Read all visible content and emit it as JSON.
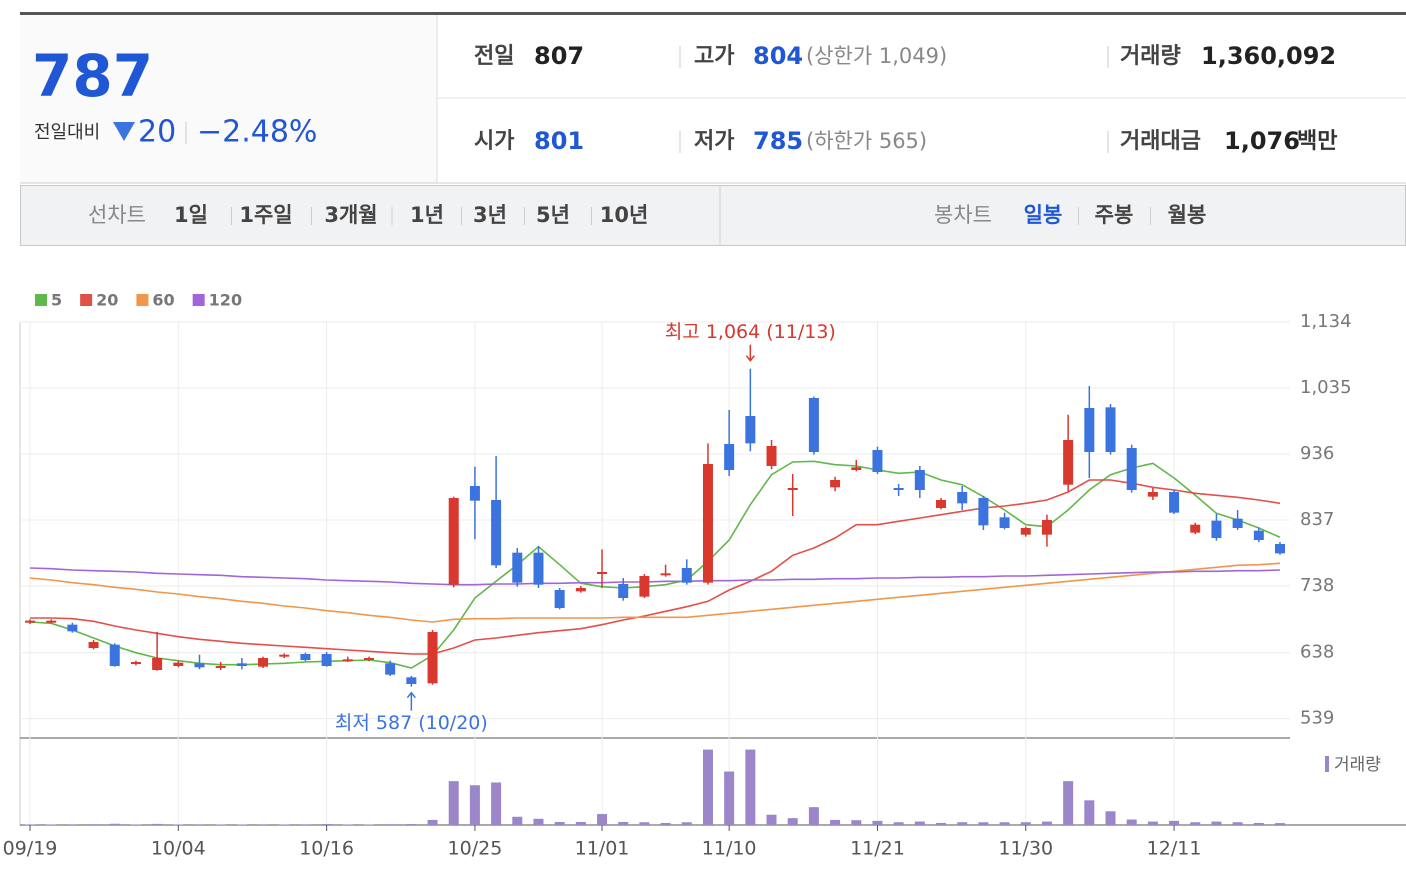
{
  "header": {
    "price": "787",
    "change_label": "전일대비",
    "change": "20",
    "change_pct": "−2.48%",
    "stats": [
      {
        "label": "전일",
        "value": "807"
      },
      {
        "label": "고가",
        "value": "804",
        "extra": "(상한가 1,049)"
      },
      {
        "label": "거래량",
        "value": "1,360,092"
      },
      {
        "label": "시가",
        "value": "801"
      },
      {
        "label": "저가",
        "value": "785",
        "extra": "(하한가 565)"
      },
      {
        "label": "거래대금",
        "value": "1,076",
        "unit": "백만"
      }
    ]
  },
  "tabs": {
    "line_chart": {
      "label": "선차트",
      "options": [
        "1일",
        "1주일",
        "3개월",
        "1년",
        "3년",
        "5년",
        "10년"
      ]
    },
    "candle_chart": {
      "label": "봉차트",
      "options": [
        "일봉",
        "주봉",
        "월봉"
      ],
      "selected": "일봉"
    }
  },
  "chart_data": {
    "type": "candlestick",
    "categories": [
      "09/19",
      null,
      null,
      null,
      null,
      null,
      null,
      "10/04",
      null,
      null,
      null,
      null,
      null,
      null,
      "10/16",
      null,
      null,
      null,
      null,
      null,
      null,
      "10/25",
      null,
      null,
      null,
      null,
      null,
      "11/01",
      null,
      null,
      null,
      null,
      null,
      "11/10",
      null,
      null,
      null,
      null,
      null,
      null,
      "11/21",
      null,
      null,
      null,
      null,
      null,
      null,
      "11/30",
      null,
      null,
      null,
      null,
      null,
      null,
      "12/11",
      null,
      null,
      null,
      null,
      null
    ],
    "open": [
      683,
      683,
      680,
      645,
      650,
      621,
      612,
      618,
      622,
      615,
      622,
      617,
      632,
      636,
      636,
      625,
      627,
      622,
      601,
      592,
      740,
      888,
      867,
      788,
      788,
      732,
      730,
      756,
      741,
      722,
      754,
      765,
      743,
      951,
      993,
      918,
      882,
      1020,
      886,
      912,
      942,
      885,
      912,
      855,
      879,
      870,
      841,
      815,
      815,
      890,
      1005,
      1006,
      945,
      872,
      879,
      818,
      836,
      839,
      821,
      801
    ],
    "high": [
      688,
      688,
      683,
      657,
      652,
      626,
      669,
      626,
      635,
      624,
      630,
      632,
      637,
      638,
      639,
      632,
      632,
      626,
      603,
      672,
      872,
      917,
      933,
      795,
      798,
      735,
      738,
      793,
      750,
      756,
      770,
      778,
      952,
      1002,
      1064,
      957,
      906,
      1022,
      902,
      927,
      947,
      891,
      918,
      870,
      888,
      873,
      848,
      827,
      845,
      995,
      1038,
      1011,
      950,
      885,
      882,
      833,
      846,
      852,
      826,
      804
    ],
    "low": [
      681,
      682,
      668,
      643,
      617,
      619,
      611,
      616,
      613,
      612,
      613,
      615,
      630,
      625,
      617,
      624,
      625,
      603,
      587,
      590,
      736,
      808,
      765,
      737,
      735,
      703,
      728,
      735,
      716,
      720,
      752,
      740,
      740,
      903,
      940,
      913,
      843,
      935,
      880,
      910,
      906,
      873,
      870,
      853,
      852,
      822,
      823,
      812,
      797,
      880,
      900,
      935,
      878,
      867,
      846,
      816,
      806,
      822,
      804,
      785
    ],
    "close": [
      686,
      686,
      670,
      654,
      618,
      624,
      630,
      623,
      616,
      618,
      618,
      630,
      635,
      627,
      618,
      628,
      630,
      605,
      591,
      669,
      870,
      866,
      769,
      743,
      740,
      705,
      735,
      759,
      720,
      753,
      757,
      743,
      921,
      912,
      952,
      948,
      885,
      939,
      897,
      916,
      909,
      882,
      882,
      867,
      862,
      829,
      825,
      825,
      837,
      957,
      939,
      939,
      882,
      879,
      848,
      830,
      810,
      825,
      807,
      787
    ],
    "up_color": "#d8382e",
    "down_color": "#3b73df",
    "ma": [
      {
        "name": "5",
        "color": "#5fb84a",
        "values": [
          684,
          682,
          672,
          660,
          648,
          638,
          630,
          626,
          622,
          620,
          620,
          621,
          622,
          624,
          625,
          626,
          627,
          623,
          615,
          634,
          672,
          720,
          745,
          770,
          797,
          770,
          742,
          737,
          735,
          737,
          740,
          747,
          775,
          807,
          860,
          905,
          924,
          925,
          920,
          918,
          912,
          907,
          909,
          897,
          890,
          872,
          852,
          830,
          827,
          852,
          882,
          905,
          915,
          922,
          900,
          874,
          847,
          837,
          825,
          811
        ]
      },
      {
        "name": "20",
        "color": "#e1514a",
        "values": [
          690,
          690,
          689,
          685,
          678,
          672,
          667,
          662,
          658,
          655,
          652,
          650,
          648,
          646,
          644,
          642,
          640,
          638,
          636,
          636,
          645,
          657,
          660,
          664,
          668,
          671,
          674,
          680,
          687,
          693,
          700,
          707,
          715,
          732,
          745,
          760,
          784,
          795,
          810,
          830,
          830,
          835,
          840,
          845,
          850,
          855,
          858,
          862,
          867,
          879,
          897,
          897,
          892,
          886,
          882,
          877,
          874,
          871,
          867,
          862
        ]
      },
      {
        "name": "60",
        "color": "#f1974a",
        "values": [
          750,
          747,
          743,
          740,
          736,
          733,
          729,
          726,
          722,
          719,
          715,
          712,
          708,
          705,
          701,
          698,
          694,
          691,
          687,
          684,
          688,
          689,
          689,
          690,
          690,
          690,
          690,
          690,
          691,
          691,
          691,
          691,
          694,
          697,
          700,
          703,
          706,
          709,
          712,
          715,
          718,
          721,
          724,
          727,
          730,
          733,
          736,
          739,
          742,
          745,
          748,
          751,
          754,
          757,
          760,
          763,
          766,
          769,
          770,
          772
        ]
      },
      {
        "name": "120",
        "color": "#a066d8",
        "values": [
          765,
          764,
          762,
          761,
          760,
          759,
          757,
          756,
          755,
          754,
          752,
          751,
          750,
          749,
          747,
          746,
          745,
          744,
          742,
          741,
          740,
          740,
          741,
          741,
          742,
          742,
          743,
          743,
          744,
          744,
          745,
          745,
          746,
          746,
          747,
          747,
          748,
          748,
          749,
          749,
          750,
          750,
          751,
          751,
          752,
          752,
          753,
          753,
          754,
          755,
          756,
          757,
          758,
          759,
          759,
          760,
          760,
          761,
          761,
          762
        ]
      }
    ],
    "ylim": [
      510,
      1134
    ],
    "yticks": [
      539,
      638,
      738,
      837,
      936,
      {
        "value": 1035,
        "label": "1,035"
      },
      {
        "value": 1134,
        "label": "1,134"
      }
    ],
    "grid": true,
    "volume_name": "거래량",
    "volume_color": "#9a86c9",
    "volume": [
      400000,
      300000,
      500000,
      600000,
      900000,
      400000,
      800000,
      300000,
      500000,
      300000,
      300000,
      500000,
      400000,
      500000,
      700000,
      300000,
      300000,
      600000,
      700000,
      3700000,
      32000000,
      29000000,
      31000000,
      6000000,
      4500000,
      2200000,
      2200000,
      8000000,
      2200000,
      2000000,
      1500000,
      2000000,
      55000000,
      39000000,
      55000000,
      7500000,
      5000000,
      13000000,
      3700000,
      3500000,
      3000000,
      2000000,
      2500000,
      1500000,
      2000000,
      2000000,
      2000000,
      2000000,
      2500000,
      32000000,
      18000000,
      10000000,
      4000000,
      2500000,
      3000000,
      2000000,
      2500000,
      2000000,
      1500000,
      1360092
    ],
    "volume_ylim": [
      0,
      62000000
    ],
    "annotations": {
      "high_label": "최고 1,064 (11/13)",
      "low_label": "최저 587 (10/20)"
    }
  }
}
